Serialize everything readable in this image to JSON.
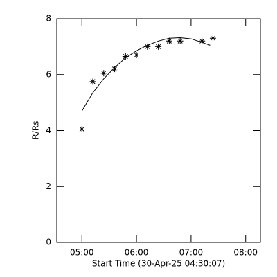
{
  "chart_data": {
    "type": "scatter",
    "x_label": "Start Time (30-Apr-25 04:30:07)",
    "y_label": "R/Rs",
    "series": [
      {
        "type": "scatter",
        "color": "#000000",
        "x": [
          5.0,
          5.2,
          5.4,
          5.6,
          5.8,
          6.0,
          6.2,
          6.4,
          6.6,
          6.8,
          7.2,
          7.4
        ],
        "values": [
          4.05,
          5.75,
          6.05,
          6.2,
          6.65,
          6.7,
          7.0,
          7.0,
          7.2,
          7.2,
          7.2,
          7.3
        ]
      },
      {
        "type": "line",
        "color": "#000000",
        "x": [
          5.0,
          5.2,
          5.4,
          5.6,
          5.8,
          6.0,
          6.2,
          6.4,
          6.6,
          6.8,
          7.0,
          7.2,
          7.35
        ],
        "values": [
          4.7,
          5.35,
          5.85,
          6.25,
          6.6,
          6.85,
          7.05,
          7.2,
          7.3,
          7.32,
          7.28,
          7.15,
          7.05
        ]
      }
    ],
    "xlim": [
      4.54,
      8.27
    ],
    "ylim": [
      0,
      8
    ],
    "xticks": [
      {
        "value": 5,
        "label": "05:00"
      },
      {
        "value": 6,
        "label": "06:00"
      },
      {
        "value": 7,
        "label": "07:00"
      },
      {
        "value": 8,
        "label": "08:00"
      }
    ],
    "yticks": [
      0,
      2,
      4,
      6,
      8
    ],
    "grid": false
  }
}
